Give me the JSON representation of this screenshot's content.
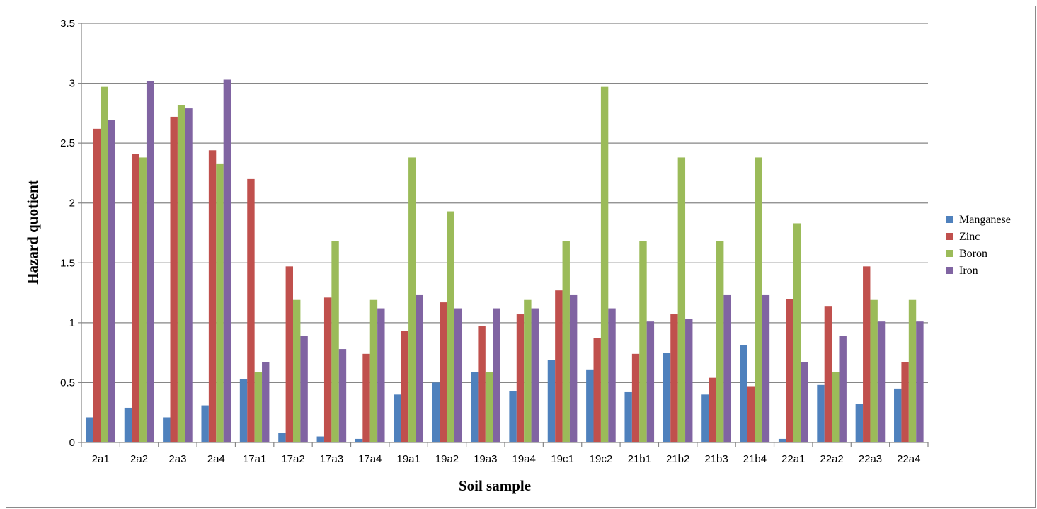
{
  "chart_data": {
    "type": "bar",
    "xlabel": "Soil sample",
    "ylabel": "Hazard quotient",
    "ylim": [
      0,
      3.5
    ],
    "yticks": [
      "0",
      "0.5",
      "1",
      "1.5",
      "2",
      "2.5",
      "3",
      "3.5"
    ],
    "grid": true,
    "legend_position": "right",
    "categories": [
      "2a1",
      "2a2",
      "2a3",
      "2a4",
      "17a1",
      "17a2",
      "17a3",
      "17a4",
      "19a1",
      "19a2",
      "19a3",
      "19a4",
      "19c1",
      "19c2",
      "21b1",
      "21b2",
      "21b3",
      "21b4",
      "22a1",
      "22a2",
      "22a3",
      "22a4"
    ],
    "series": [
      {
        "name": "Manganese",
        "color": "#4F81BD",
        "values": [
          0.21,
          0.29,
          0.21,
          0.31,
          0.53,
          0.08,
          0.05,
          0.03,
          0.4,
          0.5,
          0.59,
          0.43,
          0.69,
          0.61,
          0.42,
          0.75,
          0.4,
          0.81,
          0.03,
          0.48,
          0.32,
          0.45
        ]
      },
      {
        "name": "Zinc",
        "color": "#C0504D",
        "values": [
          2.62,
          2.41,
          2.72,
          2.44,
          2.2,
          1.47,
          1.21,
          0.74,
          0.93,
          1.17,
          0.97,
          1.07,
          1.27,
          0.87,
          0.74,
          1.07,
          0.54,
          0.47,
          1.2,
          1.14,
          1.47,
          0.67
        ]
      },
      {
        "name": "Boron",
        "color": "#9BBB59",
        "values": [
          2.97,
          2.38,
          2.82,
          2.33,
          0.59,
          1.19,
          1.68,
          1.19,
          2.38,
          1.93,
          0.59,
          1.19,
          1.68,
          2.97,
          1.68,
          2.38,
          1.68,
          2.38,
          1.83,
          0.59,
          1.19,
          1.19
        ]
      },
      {
        "name": "Iron",
        "color": "#8064A2",
        "values": [
          2.69,
          3.02,
          2.79,
          3.03,
          0.67,
          0.89,
          0.78,
          1.12,
          1.23,
          1.12,
          1.12,
          1.12,
          1.23,
          1.12,
          1.01,
          1.03,
          1.23,
          1.23,
          0.67,
          0.89,
          1.01,
          1.01
        ]
      }
    ]
  }
}
